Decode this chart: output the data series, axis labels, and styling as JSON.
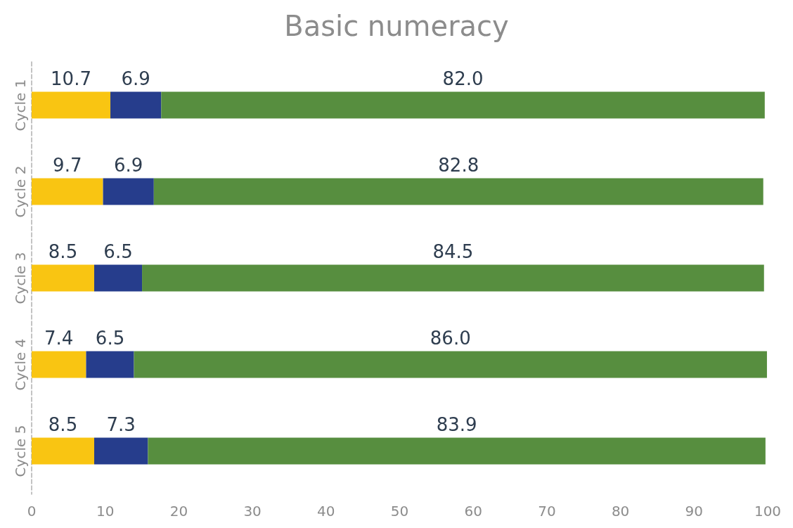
{
  "chart_data": {
    "type": "bar",
    "title": "Basic numeracy",
    "orientation": "horizontal",
    "stacked": true,
    "categories": [
      "Cycle 1",
      "Cycle 2",
      "Cycle 3",
      "Cycle 4",
      "Cycle 5"
    ],
    "series": [
      {
        "color": "#f9c512",
        "values": [
          10.7,
          9.7,
          8.5,
          7.4,
          8.5
        ],
        "value_labels": [
          "10.7",
          "9.7",
          "8.5",
          "7.4",
          "8.5"
        ]
      },
      {
        "color": "#263d8c",
        "values": [
          6.9,
          6.9,
          6.5,
          6.5,
          7.3
        ],
        "value_labels": [
          "6.9",
          "6.9",
          "6.5",
          "6.5",
          "7.3"
        ]
      },
      {
        "color": "#578e3f",
        "values": [
          82.0,
          82.8,
          84.5,
          86.0,
          83.9
        ],
        "value_labels": [
          "82.0",
          "82.8",
          "84.5",
          "86.0",
          "83.9"
        ]
      }
    ],
    "xlim": [
      0,
      100
    ],
    "xticks": [
      0,
      10,
      20,
      30,
      40,
      50,
      60,
      70,
      80,
      90,
      100
    ],
    "grid": false
  }
}
